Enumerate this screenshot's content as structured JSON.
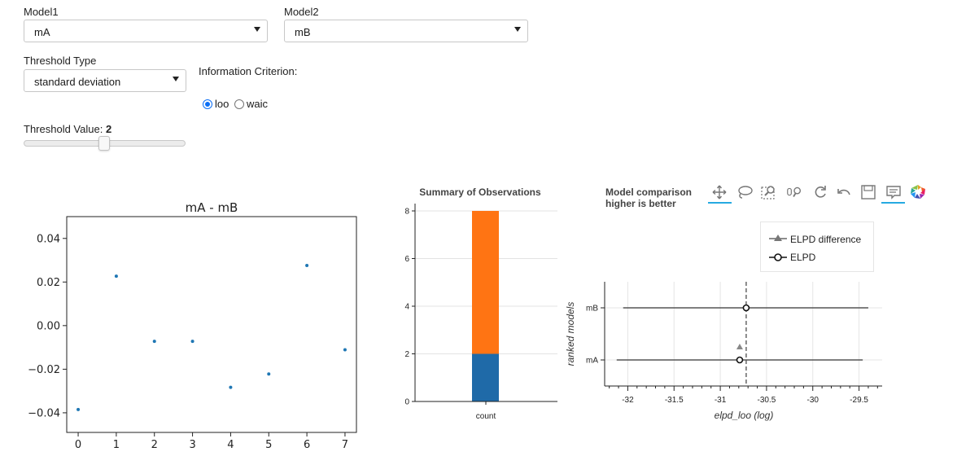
{
  "controls": {
    "model1": {
      "label": "Model1",
      "value": "mA"
    },
    "model2": {
      "label": "Model2",
      "value": "mB"
    },
    "threshold_type": {
      "label": "Threshold Type",
      "value": "standard deviation"
    },
    "information_criterion": {
      "label": "Information Criterion:",
      "options": [
        "loo",
        "waic"
      ],
      "selected": "loo"
    },
    "threshold_value": {
      "label": "Threshold Value:",
      "value": "2",
      "slider_fraction": 0.5
    }
  },
  "toolbar": {
    "icons": [
      "pan-icon",
      "lasso-select-icon",
      "box-zoom-icon",
      "wheel-zoom-icon",
      "reset-icon",
      "undo-icon",
      "save-icon",
      "hover-icon",
      "bokeh-logo-icon"
    ],
    "active": [
      "pan-icon",
      "hover-icon"
    ]
  },
  "chart_data": [
    {
      "type": "scatter",
      "title": "mA - mB",
      "x": [
        0,
        1,
        2,
        3,
        4,
        5,
        6,
        7
      ],
      "y": [
        -0.0385,
        0.0227,
        -0.0072,
        -0.0072,
        -0.0283,
        -0.0222,
        0.0276,
        -0.0111
      ],
      "xticks": [
        "0",
        "1",
        "2",
        "3",
        "4",
        "5",
        "6",
        "7"
      ],
      "yticks": [
        "0.04",
        "0.02",
        "0.00",
        "−0.02",
        "−0.04"
      ],
      "ytick_values": [
        0.04,
        0.02,
        0.0,
        -0.02,
        -0.04
      ],
      "xlim": [
        -0.3,
        7.3
      ],
      "ylim": [
        -0.049,
        0.05
      ],
      "color": "#1f77b4"
    },
    {
      "type": "bar",
      "title": "Summary of Observations",
      "categories": [
        "count"
      ],
      "series": [
        {
          "values": [
            2
          ],
          "color": "#1f6aa8"
        },
        {
          "values": [
            6
          ],
          "color": "#ff7413"
        }
      ],
      "stacked": true,
      "yticks": [
        "0",
        "2",
        "4",
        "6",
        "8"
      ],
      "ylim": [
        0,
        8
      ],
      "grid": true
    },
    {
      "type": "scatter",
      "title": "Model comparison",
      "subtitle": "higher is better",
      "xlabel": "elpd_loo (log)",
      "ylabel": "ranked models",
      "categories": [
        "mB",
        "mA"
      ],
      "elpd": [
        -30.72,
        -30.79
      ],
      "elpd_err": [
        [
          -32.05,
          -29.4
        ],
        [
          -32.12,
          -29.46
        ]
      ],
      "elpd_difference": {
        "model": "mA",
        "value": -30.79
      },
      "reference_line": -30.72,
      "xticks": [
        "-32",
        "-31.5",
        "-31",
        "-30.5",
        "-30",
        "-29.5"
      ],
      "xtick_values": [
        -32,
        -31.5,
        -31,
        -30.5,
        -30,
        -29.5
      ],
      "xlim": [
        -32.25,
        -29.25
      ],
      "legend": [
        "ELPD difference",
        "ELPD"
      ],
      "legend_position": "top-right"
    }
  ]
}
